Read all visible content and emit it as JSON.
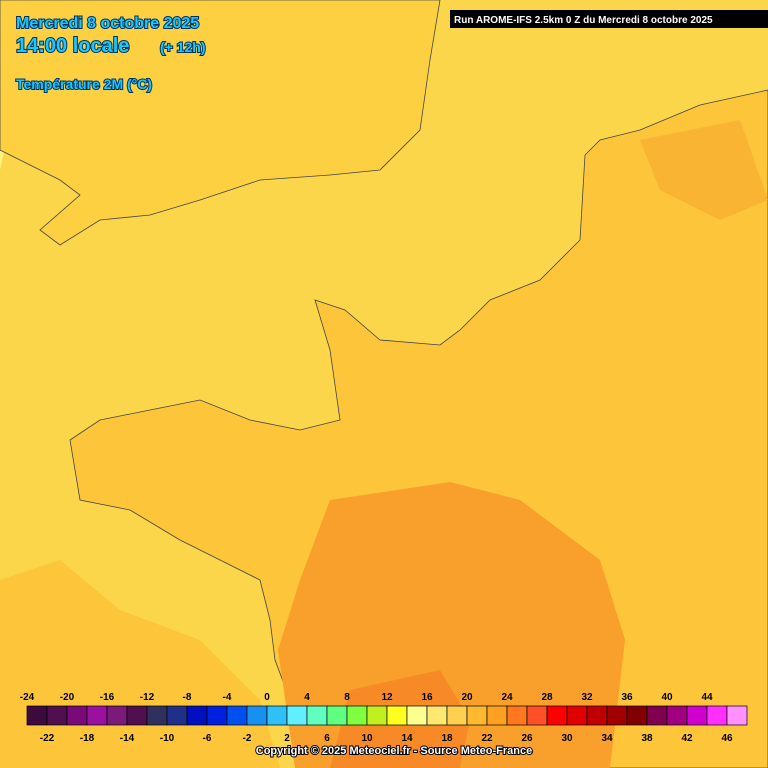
{
  "header": {
    "date": "Mercredi 8 octobre 2025",
    "time": "14:00 locale",
    "offset": "(+ 12h)",
    "parameter": "Température 2M (°C)",
    "run": "Run AROME-IFS 2.5km 0 Z du Mercredi 8 octobre 2025"
  },
  "legend": {
    "ticks": [
      -24,
      -22,
      -20,
      -18,
      -16,
      -14,
      -12,
      -10,
      -8,
      -6,
      -4,
      -2,
      0,
      2,
      4,
      6,
      8,
      10,
      12,
      14,
      16,
      18,
      20,
      22,
      24,
      26,
      28,
      30,
      32,
      34,
      36,
      38,
      40,
      42,
      44,
      46
    ],
    "colors": [
      "#3c0a3c",
      "#50104f",
      "#7a0a7a",
      "#9a10a0",
      "#7a1a7a",
      "#501050",
      "#303060",
      "#20308a",
      "#0010c0",
      "#0020e0",
      "#0050f0",
      "#1890f0",
      "#30c0f8",
      "#60f0ff",
      "#60ffc0",
      "#60ff80",
      "#80ff40",
      "#c0f020",
      "#ffff20",
      "#ffff90",
      "#ffe870",
      "#ffd050",
      "#ffb830",
      "#ffa020",
      "#ff7820",
      "#ff5028",
      "#ff0000",
      "#e00000",
      "#c00000",
      "#a00000",
      "#800000",
      "#800050",
      "#a00080",
      "#d000d0",
      "#ff30ff",
      "#ff90ff"
    ]
  },
  "footer": {
    "copyright": "Copyright © 2025 Meteociel.fr - Source Meteo-France"
  }
}
